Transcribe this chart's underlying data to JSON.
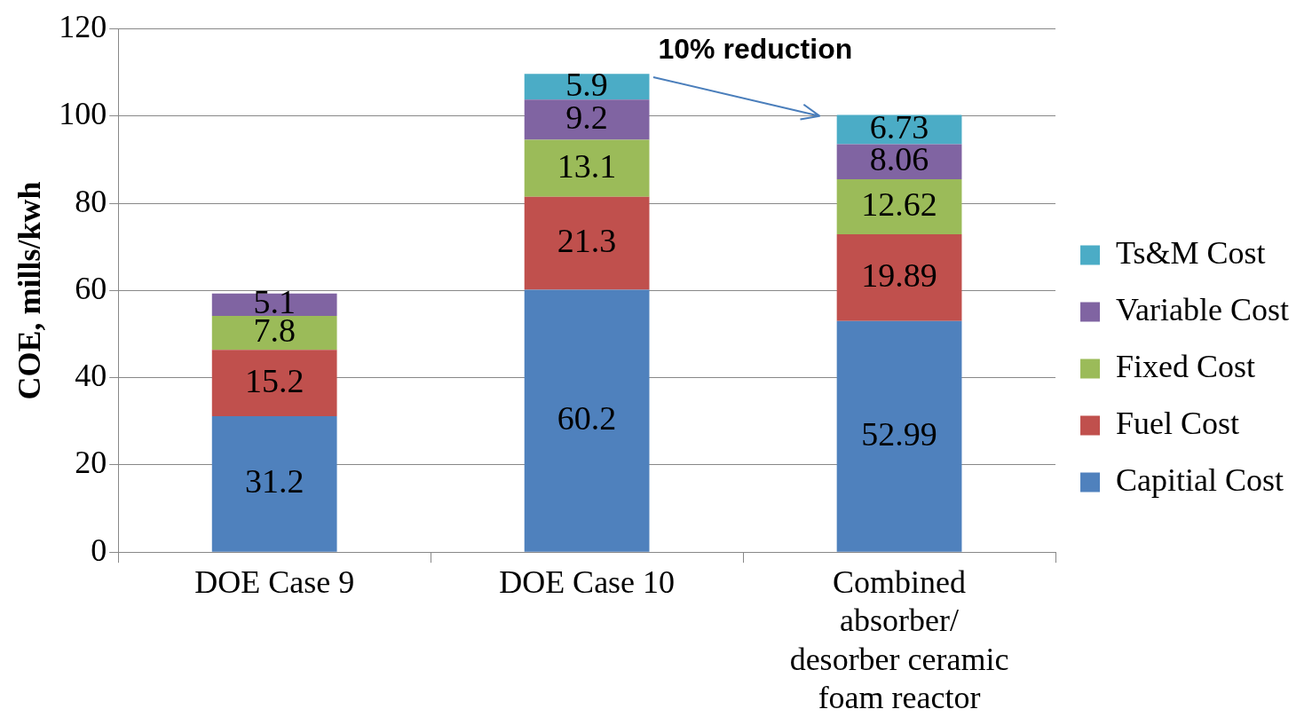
{
  "chart_data": {
    "type": "bar",
    "stacked": true,
    "ylabel": "COE, mills/kwh",
    "categories": [
      "DOE Case 9",
      "DOE Case 10",
      "Combined absorber/ desorber ceramic foam reactor"
    ],
    "series": [
      {
        "name": "Capitial Cost",
        "color": "#4f81bd",
        "values": [
          31.2,
          60.2,
          52.99
        ]
      },
      {
        "name": "Fuel Cost",
        "color": "#c0504d",
        "values": [
          15.2,
          21.3,
          19.89
        ]
      },
      {
        "name": "Fixed Cost",
        "color": "#9bbb59",
        "values": [
          7.8,
          13.1,
          12.62
        ]
      },
      {
        "name": "Variable Cost",
        "color": "#8064a2",
        "values": [
          5.1,
          9.2,
          8.06
        ]
      },
      {
        "name": "Ts&M Cost",
        "color": "#4bacc6",
        "values": [
          null,
          5.9,
          6.73
        ]
      }
    ],
    "ylim": [
      0,
      120
    ],
    "yticks": [
      0,
      20,
      40,
      60,
      80,
      100,
      120
    ],
    "grid": "y",
    "legend": "right",
    "data_labels": true,
    "annotations": [
      {
        "text": "10% reduction",
        "x": "Combined absorber/ desorber ceramic foam reactor",
        "y": 100
      }
    ]
  }
}
